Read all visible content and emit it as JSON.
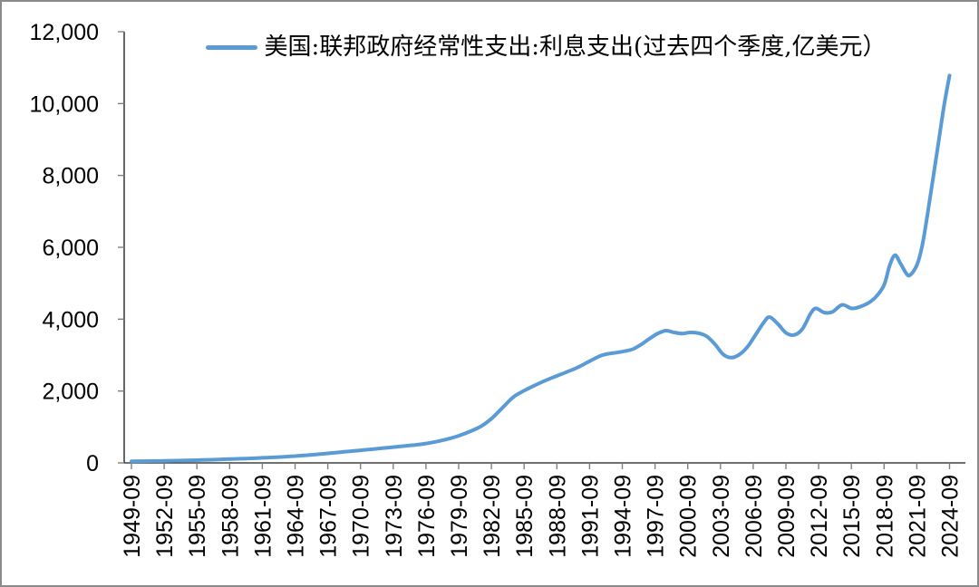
{
  "frame": {
    "background": "#ffffff",
    "border_color": "#8a8a8a"
  },
  "chart_data": {
    "type": "line",
    "title": "",
    "legend": {
      "label": "美国:联邦政府经常性支出:利息支出(过去四个季度,亿美元）",
      "position": "top-center",
      "marker_color": "#5B9BD5"
    },
    "x_axis": {
      "tick_labels": [
        "1949-09",
        "1952-09",
        "1955-09",
        "1958-09",
        "1961-09",
        "1964-09",
        "1967-09",
        "1970-09",
        "1973-09",
        "1976-09",
        "1979-09",
        "1982-09",
        "1985-09",
        "1988-09",
        "1991-09",
        "1994-09",
        "1997-09",
        "2000-09",
        "2003-09",
        "2006-09",
        "2009-09",
        "2012-09",
        "2015-09",
        "2018-09",
        "2021-09",
        "2024-09"
      ],
      "label_rotation_deg": -90,
      "tick_interval_years": 3,
      "range_years": [
        1949.75,
        2024.75
      ]
    },
    "y_axis": {
      "ticks": [
        0,
        2000,
        4000,
        6000,
        8000,
        10000,
        12000
      ],
      "tick_labels": [
        "0",
        "2,000",
        "4,000",
        "6,000",
        "8,000",
        "10,000",
        "12,000"
      ],
      "range": [
        0,
        12000
      ]
    },
    "grid": false,
    "axis_color": "#404040",
    "tick_color": "#7f7f7f",
    "series": [
      {
        "name": "美国:联邦政府经常性支出:利息支出(过去四个季度,亿美元）",
        "color": "#5B9BD5",
        "stroke_width": 4,
        "unit": "亿美元",
        "points": [
          [
            1949.75,
            45
          ],
          [
            1950.75,
            48
          ],
          [
            1951.75,
            52
          ],
          [
            1952.75,
            57
          ],
          [
            1953.75,
            62
          ],
          [
            1954.75,
            68
          ],
          [
            1955.75,
            76
          ],
          [
            1956.75,
            86
          ],
          [
            1957.75,
            97
          ],
          [
            1958.75,
            106
          ],
          [
            1959.75,
            116
          ],
          [
            1960.75,
            127
          ],
          [
            1961.75,
            140
          ],
          [
            1962.75,
            154
          ],
          [
            1963.75,
            170
          ],
          [
            1964.75,
            190
          ],
          [
            1965.75,
            212
          ],
          [
            1966.75,
            237
          ],
          [
            1967.75,
            264
          ],
          [
            1968.75,
            293
          ],
          [
            1969.75,
            322
          ],
          [
            1970.75,
            350
          ],
          [
            1971.75,
            378
          ],
          [
            1972.75,
            408
          ],
          [
            1973.75,
            438
          ],
          [
            1974.75,
            468
          ],
          [
            1975.75,
            500
          ],
          [
            1976.75,
            540
          ],
          [
            1977.75,
            595
          ],
          [
            1978.75,
            665
          ],
          [
            1979.75,
            755
          ],
          [
            1980.75,
            870
          ],
          [
            1981.75,
            1010
          ],
          [
            1982.75,
            1230
          ],
          [
            1983.75,
            1530
          ],
          [
            1984.75,
            1830
          ],
          [
            1985.75,
            2010
          ],
          [
            1986.75,
            2160
          ],
          [
            1987.75,
            2300
          ],
          [
            1988.75,
            2420
          ],
          [
            1989.75,
            2540
          ],
          [
            1990.75,
            2670
          ],
          [
            1991.75,
            2830
          ],
          [
            1992.75,
            2980
          ],
          [
            1993.5,
            3040
          ],
          [
            1994.25,
            3070
          ],
          [
            1995,
            3110
          ],
          [
            1995.75,
            3170
          ],
          [
            1996.5,
            3300
          ],
          [
            1997.25,
            3460
          ],
          [
            1998,
            3600
          ],
          [
            1998.75,
            3680
          ],
          [
            1999.5,
            3630
          ],
          [
            2000.25,
            3600
          ],
          [
            2001,
            3630
          ],
          [
            2001.75,
            3610
          ],
          [
            2002.5,
            3520
          ],
          [
            2003.25,
            3300
          ],
          [
            2004,
            3020
          ],
          [
            2004.75,
            2930
          ],
          [
            2005.5,
            3020
          ],
          [
            2006.25,
            3240
          ],
          [
            2007,
            3580
          ],
          [
            2007.75,
            3920
          ],
          [
            2008.25,
            4060
          ],
          [
            2009,
            3870
          ],
          [
            2009.75,
            3620
          ],
          [
            2010.5,
            3560
          ],
          [
            2011.25,
            3720
          ],
          [
            2012,
            4150
          ],
          [
            2012.5,
            4300
          ],
          [
            2013.25,
            4185
          ],
          [
            2014,
            4200
          ],
          [
            2014.9,
            4400
          ],
          [
            2015.75,
            4300
          ],
          [
            2016.5,
            4340
          ],
          [
            2017.25,
            4440
          ],
          [
            2018,
            4620
          ],
          [
            2018.75,
            4950
          ],
          [
            2019.25,
            5480
          ],
          [
            2019.75,
            5780
          ],
          [
            2020.25,
            5550
          ],
          [
            2020.75,
            5290
          ],
          [
            2021.1,
            5220
          ],
          [
            2021.75,
            5500
          ],
          [
            2022.25,
            6050
          ],
          [
            2022.75,
            6950
          ],
          [
            2023.25,
            7950
          ],
          [
            2023.75,
            8950
          ],
          [
            2024.25,
            9950
          ],
          [
            2024.75,
            10780
          ]
        ]
      }
    ]
  }
}
